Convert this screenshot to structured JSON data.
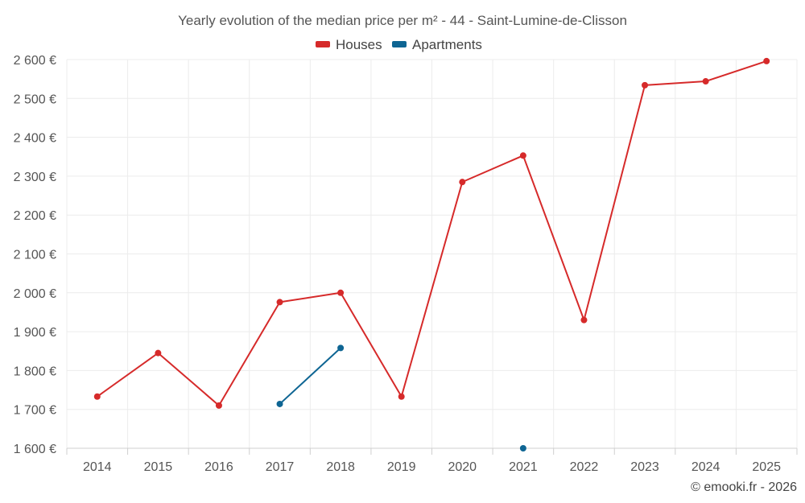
{
  "chart_data": {
    "type": "line",
    "title": "Yearly evolution of the median price per m² - 44 - Saint-Lumine-de-Clisson",
    "categories": [
      "2014",
      "2015",
      "2016",
      "2017",
      "2018",
      "2019",
      "2020",
      "2021",
      "2022",
      "2023",
      "2024",
      "2025"
    ],
    "series": [
      {
        "name": "Houses",
        "color": "#d62a2a",
        "values": [
          1733,
          1845,
          1710,
          1976,
          2000,
          1733,
          2285,
          2353,
          1930,
          2534,
          2544,
          2596
        ]
      },
      {
        "name": "Apartments",
        "color": "#0e6593",
        "values": [
          null,
          null,
          null,
          1714,
          1858,
          null,
          null,
          1600,
          null,
          null,
          null,
          null
        ]
      }
    ],
    "ylim": [
      1600,
      2600
    ],
    "yticks": [
      1600,
      1700,
      1800,
      1900,
      2000,
      2100,
      2200,
      2300,
      2400,
      2500,
      2600
    ],
    "ytick_labels": [
      "1 600 €",
      "1 700 €",
      "1 800 €",
      "1 900 €",
      "2 000 €",
      "2 100 €",
      "2 200 €",
      "2 300 €",
      "2 400 €",
      "2 500 €",
      "2 600 €"
    ],
    "xlabel": "",
    "ylabel": "",
    "grid": true,
    "legend_position": "top-center"
  },
  "credit": "© emooki.fr - 2026"
}
